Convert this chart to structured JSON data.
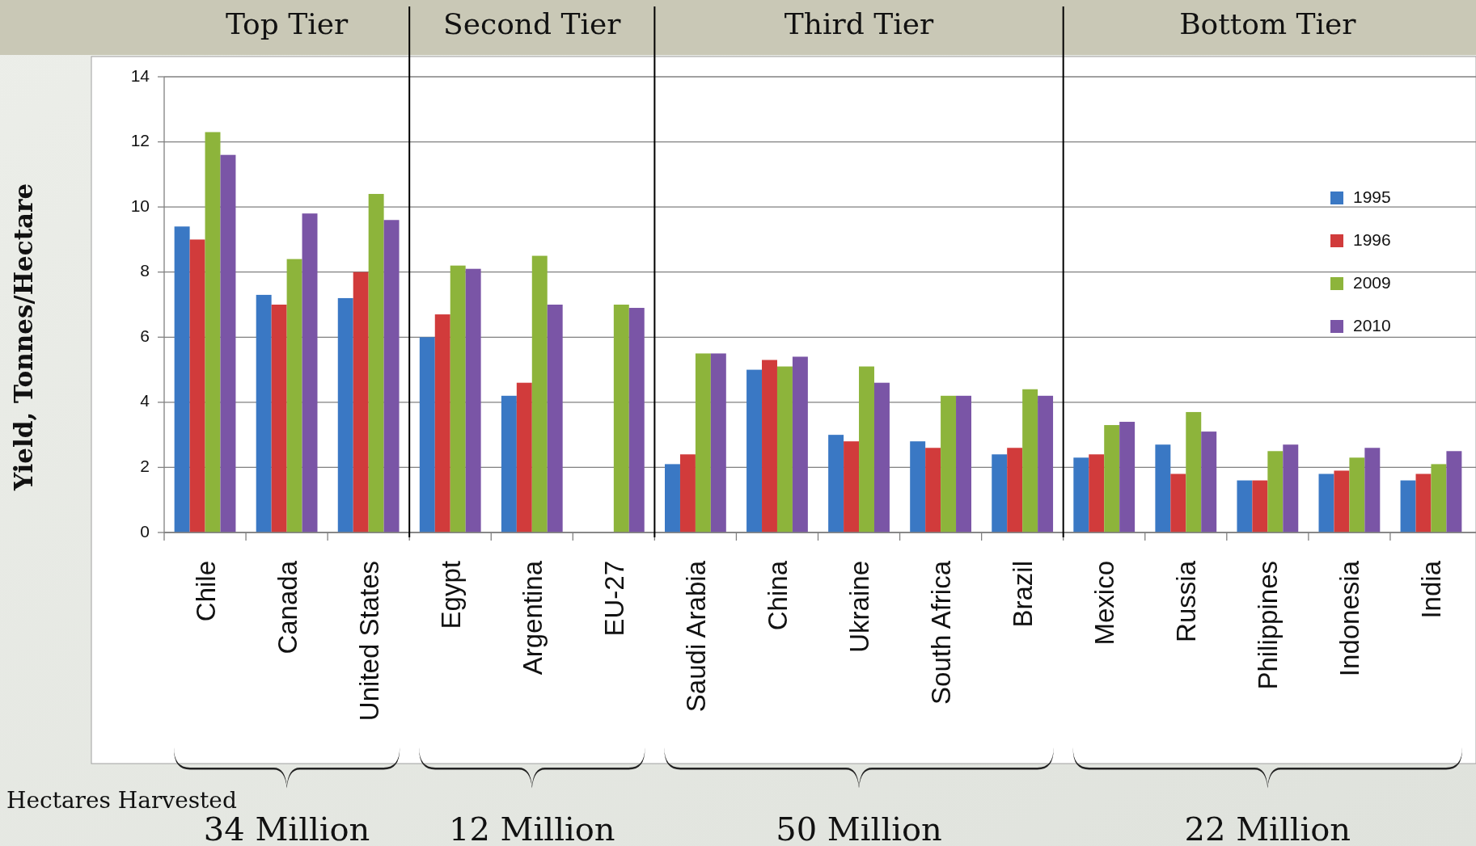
{
  "chart_data": {
    "type": "bar",
    "ylabel": "Yield, Tonnes/Hectare",
    "categories": [
      "Chile",
      "Canada",
      "United States",
      "Egypt",
      "Argentina",
      "EU-27",
      "Saudi Arabia",
      "China",
      "Ukraine",
      "South Africa",
      "Brazil",
      "Mexico",
      "Russia",
      "Philippines",
      "Indonesia",
      "India"
    ],
    "series": [
      {
        "name": "1995",
        "color": "#3a78c4",
        "values": [
          9.4,
          7.3,
          7.2,
          6.0,
          4.2,
          null,
          2.1,
          5.0,
          3.0,
          2.8,
          2.4,
          2.3,
          2.7,
          1.6,
          1.8,
          1.6
        ]
      },
      {
        "name": "1996",
        "color": "#d13b3b",
        "values": [
          9.0,
          7.0,
          8.0,
          6.7,
          4.6,
          null,
          2.4,
          5.3,
          2.8,
          2.6,
          2.6,
          2.4,
          1.8,
          1.6,
          1.9,
          1.8
        ]
      },
      {
        "name": "2009",
        "color": "#8db43b",
        "values": [
          12.3,
          8.4,
          10.4,
          8.2,
          8.5,
          7.0,
          5.5,
          5.1,
          5.1,
          4.2,
          4.4,
          3.3,
          3.7,
          2.5,
          2.3,
          2.1
        ]
      },
      {
        "name": "2010",
        "color": "#7a55a6",
        "values": [
          11.6,
          9.8,
          9.6,
          8.1,
          7.0,
          6.9,
          5.5,
          5.4,
          4.6,
          4.2,
          4.2,
          3.4,
          3.1,
          2.7,
          2.6,
          2.5
        ]
      }
    ],
    "ylim": [
      0,
      14
    ],
    "yticks": [
      0,
      2,
      4,
      6,
      8,
      10,
      12,
      14
    ],
    "grid": "y",
    "legend": "right",
    "annotations": [
      "Top Tier",
      "Second Tier",
      "Third Tier",
      "Bottom Tier",
      "Hectares Harvested",
      "34 Million",
      "12 Million",
      "50 Million",
      "22 Million"
    ]
  }
}
